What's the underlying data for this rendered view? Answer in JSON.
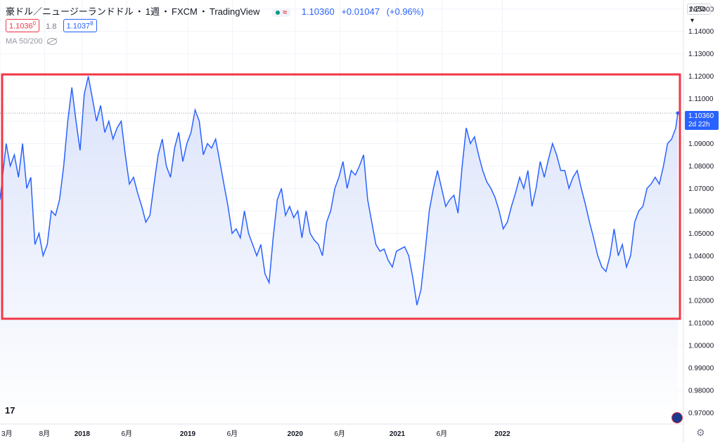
{
  "header": {
    "symbol": "豪ドル／ニュージーランドドル",
    "interval": "1週",
    "exchange": "FXCM",
    "provider": "TradingView",
    "last_price": "1.10360",
    "change": "+0.01047",
    "change_pct": "(+0.96%)"
  },
  "quotes": {
    "bid": "1.1036",
    "bid_sup": "0",
    "spread": "1.8",
    "ask": "1.1037",
    "ask_sup": "8"
  },
  "indicator": {
    "label": "MA 50/200"
  },
  "currency": "NZD",
  "price_tag": {
    "price": "1.10360",
    "countdown": "2d 22h"
  },
  "logo_text": "17",
  "colors": {
    "line": "#2962ff",
    "highlight_box": "#f23645",
    "fill_top": "#dbe3fb",
    "fill_bottom": "#ffffff"
  },
  "chart_data": {
    "type": "area",
    "title": "",
    "xlabel": "",
    "ylabel": "",
    "grid": true,
    "ylim": [
      0.965,
      1.154
    ],
    "yticks": [
      "1.15000",
      "1.14000",
      "1.13000",
      "1.12000",
      "1.11000",
      "1.10000",
      "1.09000",
      "1.08000",
      "1.07000",
      "1.06000",
      "1.05000",
      "1.04000",
      "1.03000",
      "1.02000",
      "1.01000",
      "1.00000",
      "0.99000",
      "0.98000",
      "0.97000"
    ],
    "xticks": [
      {
        "label": "3月",
        "t": 0.0
      },
      {
        "label": "8月",
        "t": 21.7
      },
      {
        "label": "2018",
        "t": 40.0
      },
      {
        "label": "6月",
        "t": 61.7
      },
      {
        "label": "2019",
        "t": 91.4
      },
      {
        "label": "6月",
        "t": 113.1
      },
      {
        "label": "2020",
        "t": 143.7
      },
      {
        "label": "6月",
        "t": 165.4
      },
      {
        "label": "2021",
        "t": 193.4
      },
      {
        "label": "6月",
        "t": 215.1
      },
      {
        "label": "2022",
        "t": 244.6
      }
    ],
    "series": [
      {
        "values": [
          [
            0,
            1.065
          ],
          [
            3,
            1.09
          ],
          [
            5,
            1.08
          ],
          [
            7,
            1.085
          ],
          [
            9,
            1.075
          ],
          [
            11,
            1.09
          ],
          [
            13,
            1.07
          ],
          [
            15,
            1.075
          ],
          [
            17,
            1.045
          ],
          [
            19,
            1.05
          ],
          [
            21,
            1.04
          ],
          [
            23,
            1.045
          ],
          [
            25,
            1.06
          ],
          [
            27,
            1.058
          ],
          [
            29,
            1.065
          ],
          [
            31,
            1.08
          ],
          [
            33,
            1.1
          ],
          [
            35,
            1.115
          ],
          [
            37,
            1.1
          ],
          [
            39,
            1.087
          ],
          [
            41,
            1.112
          ],
          [
            43,
            1.12
          ],
          [
            45,
            1.11
          ],
          [
            47,
            1.1
          ],
          [
            49,
            1.107
          ],
          [
            51,
            1.095
          ],
          [
            53,
            1.1
          ],
          [
            55,
            1.092
          ],
          [
            57,
            1.097
          ],
          [
            59,
            1.1
          ],
          [
            61,
            1.085
          ],
          [
            63,
            1.072
          ],
          [
            65,
            1.075
          ],
          [
            67,
            1.068
          ],
          [
            69,
            1.062
          ],
          [
            71,
            1.055
          ],
          [
            73,
            1.058
          ],
          [
            75,
            1.072
          ],
          [
            77,
            1.085
          ],
          [
            79,
            1.092
          ],
          [
            81,
            1.08
          ],
          [
            83,
            1.075
          ],
          [
            85,
            1.088
          ],
          [
            87,
            1.095
          ],
          [
            89,
            1.082
          ],
          [
            91,
            1.09
          ],
          [
            93,
            1.095
          ],
          [
            95,
            1.105
          ],
          [
            97,
            1.1
          ],
          [
            99,
            1.085
          ],
          [
            101,
            1.09
          ],
          [
            103,
            1.088
          ],
          [
            105,
            1.092
          ],
          [
            107,
            1.082
          ],
          [
            109,
            1.072
          ],
          [
            111,
            1.062
          ],
          [
            113,
            1.05
          ],
          [
            115,
            1.052
          ],
          [
            117,
            1.048
          ],
          [
            119,
            1.06
          ],
          [
            121,
            1.05
          ],
          [
            123,
            1.045
          ],
          [
            125,
            1.04
          ],
          [
            127,
            1.045
          ],
          [
            129,
            1.032
          ],
          [
            131,
            1.028
          ],
          [
            133,
            1.048
          ],
          [
            135,
            1.065
          ],
          [
            137,
            1.07
          ],
          [
            139,
            1.058
          ],
          [
            141,
            1.062
          ],
          [
            143,
            1.057
          ],
          [
            145,
            1.06
          ],
          [
            147,
            1.048
          ],
          [
            149,
            1.06
          ],
          [
            151,
            1.05
          ],
          [
            153,
            1.047
          ],
          [
            155,
            1.045
          ],
          [
            157,
            1.04
          ],
          [
            159,
            1.055
          ],
          [
            161,
            1.06
          ],
          [
            163,
            1.07
          ],
          [
            165,
            1.075
          ],
          [
            167,
            1.082
          ],
          [
            169,
            1.07
          ],
          [
            171,
            1.078
          ],
          [
            173,
            1.076
          ],
          [
            175,
            1.08
          ],
          [
            177,
            1.085
          ],
          [
            179,
            1.065
          ],
          [
            181,
            1.055
          ],
          [
            183,
            1.045
          ],
          [
            185,
            1.042
          ],
          [
            187,
            1.043
          ],
          [
            189,
            1.038
          ],
          [
            191,
            1.035
          ],
          [
            193,
            1.042
          ],
          [
            195,
            1.043
          ],
          [
            197,
            1.044
          ],
          [
            199,
            1.04
          ],
          [
            201,
            1.03
          ],
          [
            203,
            1.018
          ],
          [
            205,
            1.025
          ],
          [
            207,
            1.042
          ],
          [
            209,
            1.06
          ],
          [
            211,
            1.07
          ],
          [
            213,
            1.078
          ],
          [
            215,
            1.07
          ],
          [
            217,
            1.062
          ],
          [
            219,
            1.065
          ],
          [
            221,
            1.067
          ],
          [
            223,
            1.059
          ],
          [
            225,
            1.08
          ],
          [
            227,
            1.097
          ],
          [
            229,
            1.09
          ],
          [
            231,
            1.093
          ],
          [
            233,
            1.085
          ],
          [
            235,
            1.078
          ],
          [
            237,
            1.073
          ],
          [
            239,
            1.07
          ],
          [
            241,
            1.066
          ],
          [
            243,
            1.06
          ],
          [
            245,
            1.052
          ],
          [
            247,
            1.055
          ],
          [
            249,
            1.062
          ],
          [
            251,
            1.068
          ],
          [
            253,
            1.075
          ],
          [
            255,
            1.07
          ],
          [
            257,
            1.078
          ],
          [
            259,
            1.062
          ],
          [
            261,
            1.07
          ],
          [
            263,
            1.082
          ],
          [
            265,
            1.075
          ],
          [
            267,
            1.083
          ],
          [
            269,
            1.09
          ],
          [
            271,
            1.085
          ],
          [
            273,
            1.078
          ],
          [
            275,
            1.078
          ],
          [
            277,
            1.07
          ],
          [
            279,
            1.075
          ],
          [
            281,
            1.078
          ],
          [
            283,
            1.07
          ],
          [
            285,
            1.063
          ],
          [
            287,
            1.055
          ],
          [
            289,
            1.048
          ],
          [
            291,
            1.04
          ],
          [
            293,
            1.035
          ],
          [
            295,
            1.033
          ],
          [
            297,
            1.04
          ],
          [
            299,
            1.052
          ],
          [
            301,
            1.04
          ],
          [
            303,
            1.045
          ],
          [
            305,
            1.035
          ],
          [
            307,
            1.04
          ],
          [
            309,
            1.055
          ],
          [
            311,
            1.06
          ],
          [
            313,
            1.062
          ],
          [
            315,
            1.07
          ],
          [
            317,
            1.072
          ],
          [
            319,
            1.075
          ],
          [
            321,
            1.072
          ],
          [
            323,
            1.08
          ],
          [
            325,
            1.09
          ],
          [
            327,
            1.092
          ],
          [
            329,
            1.097
          ],
          [
            330,
            1.1036
          ]
        ]
      }
    ],
    "x_domain": [
      0,
      330
    ]
  }
}
